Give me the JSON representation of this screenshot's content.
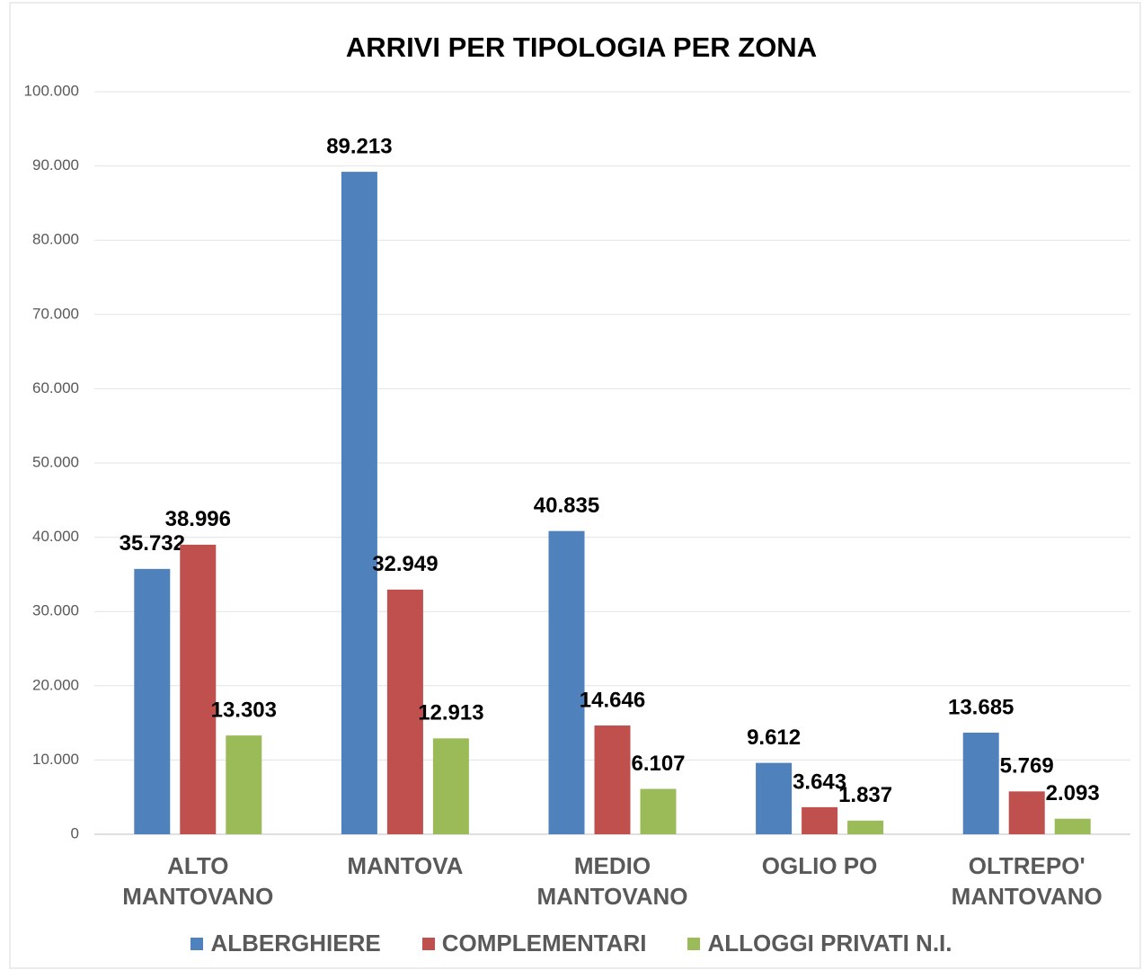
{
  "chart_data": {
    "type": "bar",
    "title": "ARRIVI PER TIPOLOGIA PER ZONA",
    "categories": [
      "ALTO MANTOVANO",
      "MANTOVA",
      "MEDIO MANTOVANO",
      "OGLIO PO",
      "OLTREPO' MANTOVANO"
    ],
    "series": [
      {
        "name": "ALBERGHIERE",
        "color": "#4f81bd",
        "values": [
          35732,
          89213,
          40835,
          9612,
          13685
        ],
        "value_labels": [
          "35.732",
          "89.213",
          "40.835",
          "9.612",
          "13.685"
        ]
      },
      {
        "name": "COMPLEMENTARI",
        "color": "#c0504d",
        "values": [
          38996,
          32949,
          14646,
          3643,
          5769
        ],
        "value_labels": [
          "38.996",
          "32.949",
          "14.646",
          "3.643",
          "5.769"
        ]
      },
      {
        "name": "ALLOGGI PRIVATI N.I.",
        "color": "#9bbb59",
        "values": [
          13303,
          12913,
          6107,
          1837,
          2093
        ],
        "value_labels": [
          "13.303",
          "12.913",
          "6.107",
          "1.837",
          "2.093"
        ]
      }
    ],
    "ylim": [
      0,
      100000
    ],
    "yticks": [
      0,
      {
        "value": 10000,
        "label": "10.000"
      },
      {
        "value": 20000,
        "label": "20.000"
      },
      {
        "value": 30000,
        "label": "30.000"
      },
      {
        "value": 40000,
        "label": "40.000"
      },
      {
        "value": 50000,
        "label": "50.000"
      },
      {
        "value": 60000,
        "label": "60.000"
      },
      {
        "value": 70000,
        "label": "70.000"
      },
      {
        "value": 80000,
        "label": "80.000"
      },
      {
        "value": 90000,
        "label": "90.000"
      },
      {
        "value": 100000,
        "label": "100.000"
      }
    ],
    "grid": true,
    "legend": "bottom"
  }
}
